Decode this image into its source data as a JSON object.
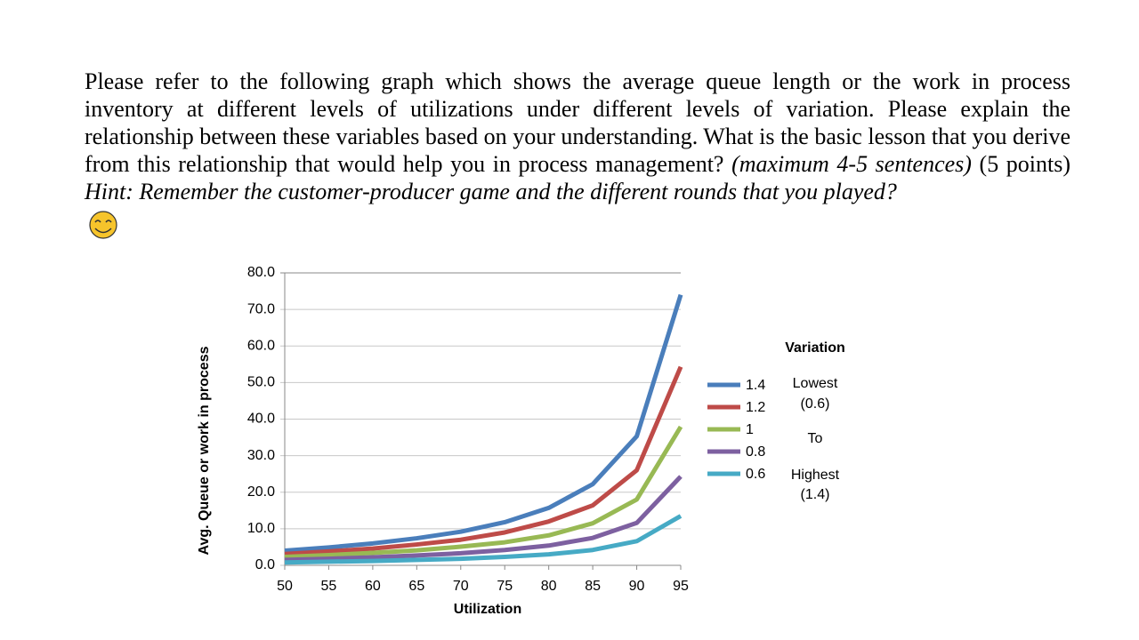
{
  "question": {
    "text": "Please refer to the following graph which shows the average queue length or the work in process inventory at different levels of utilizations under different levels of variation. Please explain the relationship between these variables based on your understanding. What is the basic lesson that you derive from this relationship that would help you in process management?",
    "instruction": "(maximum 4-5 sentences)",
    "points": "(5 points)",
    "hint": "Hint: Remember the customer-producer game and the different rounds that you played?"
  },
  "chart_data": {
    "type": "line",
    "x_label": "Utilization",
    "y_label": "Avg. Queue or work in process",
    "x": [
      50,
      55,
      60,
      65,
      70,
      75,
      80,
      85,
      90,
      95
    ],
    "xlim": [
      50,
      95
    ],
    "xticks": [
      50,
      55,
      60,
      65,
      70,
      75,
      80,
      85,
      90,
      95
    ],
    "ylim": [
      0,
      80
    ],
    "yticks": [
      {
        "value": 0,
        "label": "0.0"
      },
      {
        "value": 10,
        "label": "10.0"
      },
      {
        "value": 20,
        "label": "20.0"
      },
      {
        "value": 30,
        "label": "30.0"
      },
      {
        "value": 40,
        "label": "40.0"
      },
      {
        "value": 50,
        "label": "50.0"
      },
      {
        "value": 60,
        "label": "60.0"
      },
      {
        "value": 70,
        "label": "70.0"
      },
      {
        "value": 80,
        "label": "80.0"
      }
    ],
    "grid": true,
    "legend_title": "Variation",
    "legend_position": "right",
    "annotations": [
      "Lowest",
      "(0.6)",
      "To",
      "Highest",
      "(1.4)"
    ],
    "series": [
      {
        "name": "1.4",
        "color": "#4a7ebb",
        "values": [
          4.0,
          4.9,
          6.0,
          7.4,
          9.2,
          11.8,
          15.7,
          22.2,
          35.3,
          74.0
        ]
      },
      {
        "name": "1.2",
        "color": "#be4b48",
        "values": [
          3.1,
          3.8,
          4.6,
          5.7,
          7.0,
          9.0,
          12.0,
          16.4,
          26.0,
          54.3
        ]
      },
      {
        "name": "1",
        "color": "#98b954",
        "values": [
          2.3,
          2.8,
          3.4,
          4.1,
          5.1,
          6.3,
          8.2,
          11.5,
          18.0,
          37.9
        ]
      },
      {
        "name": "0.8",
        "color": "#7d60a0",
        "values": [
          1.5,
          1.8,
          2.2,
          2.7,
          3.3,
          4.2,
          5.4,
          7.5,
          11.6,
          24.3
        ]
      },
      {
        "name": "0.6",
        "color": "#46aac5",
        "values": [
          0.8,
          1.0,
          1.2,
          1.5,
          1.8,
          2.3,
          3.0,
          4.2,
          6.6,
          13.5
        ]
      }
    ]
  }
}
